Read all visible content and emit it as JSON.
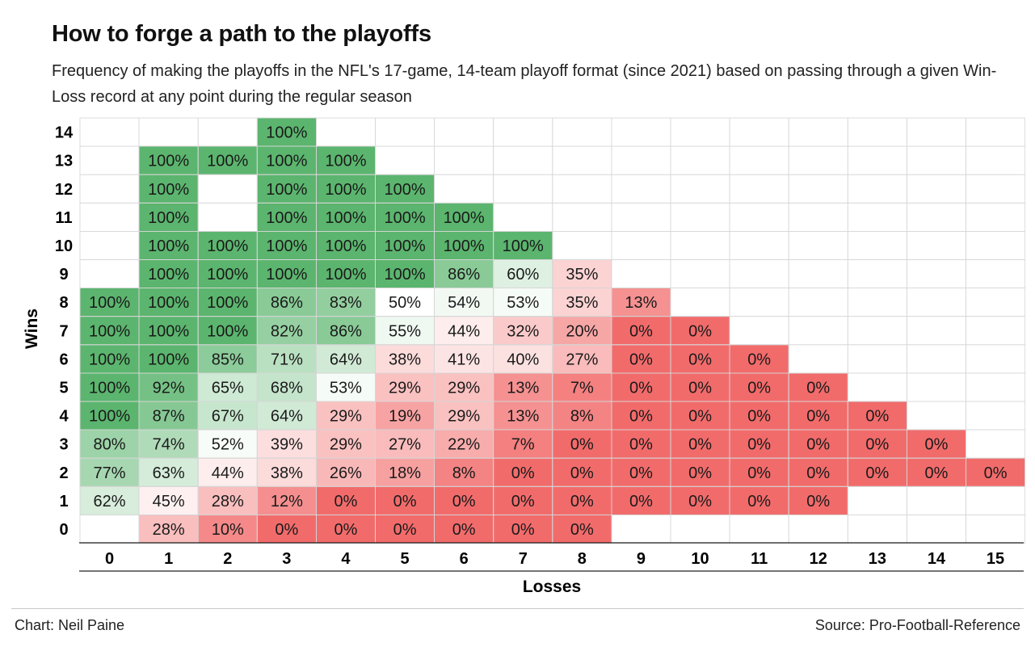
{
  "chart_data": {
    "type": "heatmap",
    "title": "How to forge a path to the playoffs",
    "subtitle": "Frequency of making the playoffs in the NFL's 17-game, 14-team playoff format (since 2021) based on passing through a given Win-Loss record at any point during the regular season",
    "xlabel": "Losses",
    "ylabel": "Wins",
    "x": [
      0,
      1,
      2,
      3,
      4,
      5,
      6,
      7,
      8,
      9,
      10,
      11,
      12,
      13,
      14,
      15
    ],
    "y": [
      14,
      13,
      12,
      11,
      10,
      9,
      8,
      7,
      6,
      5,
      4,
      3,
      2,
      1,
      0
    ],
    "values": [
      [
        null,
        null,
        null,
        100,
        null,
        null,
        null,
        null,
        null,
        null,
        null,
        null,
        null,
        null,
        null,
        null
      ],
      [
        null,
        100,
        100,
        100,
        100,
        null,
        null,
        null,
        null,
        null,
        null,
        null,
        null,
        null,
        null,
        null
      ],
      [
        null,
        100,
        null,
        100,
        100,
        100,
        null,
        null,
        null,
        null,
        null,
        null,
        null,
        null,
        null,
        null
      ],
      [
        null,
        100,
        null,
        100,
        100,
        100,
        100,
        null,
        null,
        null,
        null,
        null,
        null,
        null,
        null,
        null
      ],
      [
        null,
        100,
        100,
        100,
        100,
        100,
        100,
        100,
        null,
        null,
        null,
        null,
        null,
        null,
        null,
        null
      ],
      [
        null,
        100,
        100,
        100,
        100,
        100,
        86,
        60,
        35,
        null,
        null,
        null,
        null,
        null,
        null,
        null
      ],
      [
        100,
        100,
        100,
        86,
        83,
        50,
        54,
        53,
        35,
        13,
        null,
        null,
        null,
        null,
        null,
        null
      ],
      [
        100,
        100,
        100,
        82,
        86,
        55,
        44,
        32,
        20,
        0,
        0,
        null,
        null,
        null,
        null,
        null
      ],
      [
        100,
        100,
        85,
        71,
        64,
        38,
        41,
        40,
        27,
        0,
        0,
        0,
        null,
        null,
        null,
        null
      ],
      [
        100,
        92,
        65,
        68,
        53,
        29,
        29,
        13,
        7,
        0,
        0,
        0,
        0,
        null,
        null,
        null
      ],
      [
        100,
        87,
        67,
        64,
        29,
        19,
        29,
        13,
        8,
        0,
        0,
        0,
        0,
        0,
        null,
        null
      ],
      [
        80,
        74,
        52,
        39,
        29,
        27,
        22,
        7,
        0,
        0,
        0,
        0,
        0,
        0,
        0,
        null
      ],
      [
        77,
        63,
        44,
        38,
        26,
        18,
        8,
        0,
        0,
        0,
        0,
        0,
        0,
        0,
        0,
        0
      ],
      [
        62,
        45,
        28,
        12,
        0,
        0,
        0,
        0,
        0,
        0,
        0,
        0,
        0,
        null,
        null,
        null
      ],
      [
        null,
        28,
        10,
        0,
        0,
        0,
        0,
        0,
        0,
        null,
        null,
        null,
        null,
        null,
        null,
        null
      ]
    ],
    "value_suffix": "%",
    "colors": {
      "low": "#f26b6b",
      "mid": "#ffffff",
      "high": "#5bb56e"
    },
    "scale": [
      0,
      50,
      100
    ]
  },
  "footer": {
    "credit": "Chart: Neil Paine",
    "source": "Source: Pro-Football-Reference"
  }
}
